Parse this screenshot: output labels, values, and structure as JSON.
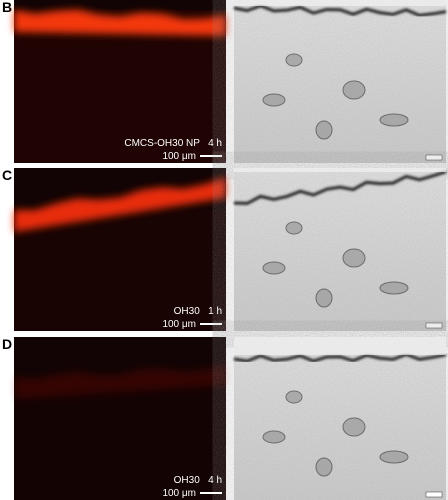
{
  "panels": [
    {
      "label": "B",
      "caption": "CMCS-OH30 NP   4 h",
      "scale": "100 μm"
    },
    {
      "label": "C",
      "caption": "OH30   1 h",
      "scale": "100 μm"
    },
    {
      "label": "D",
      "caption": "OH30   4 h",
      "scale": "100 μm"
    }
  ]
}
